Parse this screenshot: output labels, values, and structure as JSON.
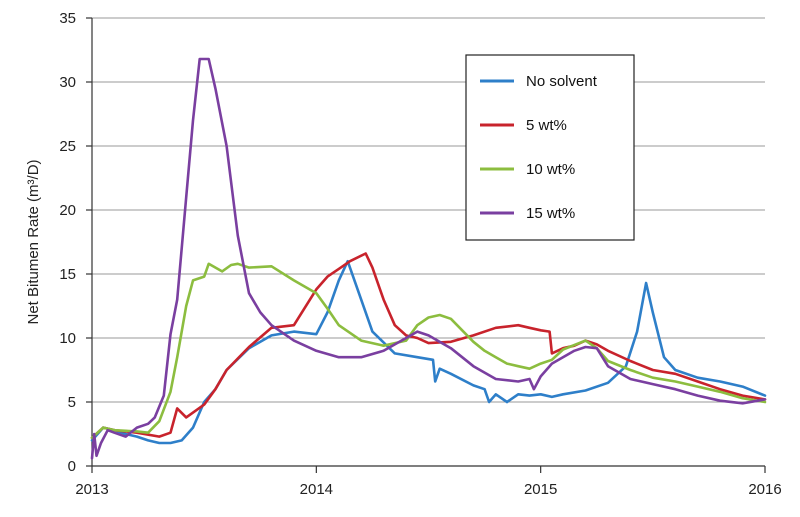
{
  "chart_data": {
    "type": "line",
    "title": "",
    "xlabel": "",
    "ylabel": "Net Bitumen Rate (m³/D)",
    "xlim": [
      2013,
      2016
    ],
    "ylim": [
      0,
      35
    ],
    "x_ticks": [
      "2013",
      "2014",
      "2015",
      "2016"
    ],
    "y_ticks": [
      "0",
      "5",
      "10",
      "15",
      "20",
      "25",
      "30",
      "35"
    ],
    "grid": "horizontal",
    "legend_position": "top-right",
    "series": [
      {
        "name": "No solvent",
        "color": "#2e7fc9",
        "points": [
          [
            2013.0,
            2.0
          ],
          [
            2013.02,
            2.4
          ],
          [
            2013.05,
            3.0
          ],
          [
            2013.1,
            2.8
          ],
          [
            2013.15,
            2.5
          ],
          [
            2013.2,
            2.3
          ],
          [
            2013.25,
            2.0
          ],
          [
            2013.3,
            1.8
          ],
          [
            2013.35,
            1.8
          ],
          [
            2013.4,
            2.0
          ],
          [
            2013.45,
            3.0
          ],
          [
            2013.5,
            5.0
          ],
          [
            2013.55,
            6.0
          ],
          [
            2013.6,
            7.5
          ],
          [
            2013.7,
            9.2
          ],
          [
            2013.8,
            10.2
          ],
          [
            2013.9,
            10.5
          ],
          [
            2014.0,
            10.3
          ],
          [
            2014.05,
            12.0
          ],
          [
            2014.1,
            14.5
          ],
          [
            2014.14,
            16.0
          ],
          [
            2014.18,
            14.0
          ],
          [
            2014.25,
            10.5
          ],
          [
            2014.35,
            8.8
          ],
          [
            2014.45,
            8.5
          ],
          [
            2014.52,
            8.3
          ],
          [
            2014.53,
            6.6
          ],
          [
            2014.55,
            7.6
          ],
          [
            2014.6,
            7.2
          ],
          [
            2014.7,
            6.3
          ],
          [
            2014.75,
            6.0
          ],
          [
            2014.77,
            5.0
          ],
          [
            2014.8,
            5.6
          ],
          [
            2014.85,
            5.0
          ],
          [
            2014.9,
            5.6
          ],
          [
            2014.95,
            5.5
          ],
          [
            2015.0,
            5.6
          ],
          [
            2015.05,
            5.4
          ],
          [
            2015.1,
            5.6
          ],
          [
            2015.2,
            5.9
          ],
          [
            2015.3,
            6.5
          ],
          [
            2015.38,
            7.8
          ],
          [
            2015.43,
            10.5
          ],
          [
            2015.47,
            14.3
          ],
          [
            2015.5,
            12.0
          ],
          [
            2015.55,
            8.5
          ],
          [
            2015.6,
            7.5
          ],
          [
            2015.7,
            6.9
          ],
          [
            2015.8,
            6.6
          ],
          [
            2015.9,
            6.2
          ],
          [
            2016.0,
            5.5
          ]
        ]
      },
      {
        "name": "5 wt%",
        "color": "#c8232c",
        "points": [
          [
            2013.0,
            2.2
          ],
          [
            2013.05,
            3.0
          ],
          [
            2013.1,
            2.8
          ],
          [
            2013.2,
            2.6
          ],
          [
            2013.3,
            2.3
          ],
          [
            2013.35,
            2.6
          ],
          [
            2013.38,
            4.5
          ],
          [
            2013.42,
            3.8
          ],
          [
            2013.5,
            4.8
          ],
          [
            2013.55,
            6.0
          ],
          [
            2013.6,
            7.5
          ],
          [
            2013.7,
            9.3
          ],
          [
            2013.8,
            10.8
          ],
          [
            2013.9,
            11.0
          ],
          [
            2014.0,
            13.8
          ],
          [
            2014.05,
            14.8
          ],
          [
            2014.1,
            15.4
          ],
          [
            2014.15,
            16.0
          ],
          [
            2014.22,
            16.6
          ],
          [
            2014.25,
            15.5
          ],
          [
            2014.3,
            13.0
          ],
          [
            2014.35,
            11.0
          ],
          [
            2014.4,
            10.2
          ],
          [
            2014.45,
            10.0
          ],
          [
            2014.5,
            9.6
          ],
          [
            2014.6,
            9.7
          ],
          [
            2014.7,
            10.2
          ],
          [
            2014.8,
            10.8
          ],
          [
            2014.9,
            11.0
          ],
          [
            2014.95,
            10.8
          ],
          [
            2015.0,
            10.6
          ],
          [
            2015.04,
            10.5
          ],
          [
            2015.05,
            8.8
          ],
          [
            2015.1,
            9.2
          ],
          [
            2015.15,
            9.4
          ],
          [
            2015.2,
            9.8
          ],
          [
            2015.25,
            9.5
          ],
          [
            2015.3,
            9.0
          ],
          [
            2015.4,
            8.2
          ],
          [
            2015.5,
            7.5
          ],
          [
            2015.6,
            7.2
          ],
          [
            2015.7,
            6.6
          ],
          [
            2015.8,
            6.0
          ],
          [
            2015.9,
            5.5
          ],
          [
            2016.0,
            5.2
          ]
        ]
      },
      {
        "name": "10 wt%",
        "color": "#8cbd3f",
        "points": [
          [
            2013.0,
            2.2
          ],
          [
            2013.05,
            3.0
          ],
          [
            2013.1,
            2.8
          ],
          [
            2013.2,
            2.7
          ],
          [
            2013.25,
            2.6
          ],
          [
            2013.3,
            3.5
          ],
          [
            2013.35,
            5.8
          ],
          [
            2013.38,
            8.5
          ],
          [
            2013.42,
            12.5
          ],
          [
            2013.45,
            14.5
          ],
          [
            2013.5,
            14.8
          ],
          [
            2013.52,
            15.8
          ],
          [
            2013.58,
            15.2
          ],
          [
            2013.62,
            15.7
          ],
          [
            2013.65,
            15.8
          ],
          [
            2013.7,
            15.5
          ],
          [
            2013.8,
            15.6
          ],
          [
            2013.9,
            14.5
          ],
          [
            2014.0,
            13.5
          ],
          [
            2014.05,
            12.3
          ],
          [
            2014.1,
            11.0
          ],
          [
            2014.2,
            9.8
          ],
          [
            2014.3,
            9.4
          ],
          [
            2014.4,
            9.8
          ],
          [
            2014.45,
            11.0
          ],
          [
            2014.5,
            11.6
          ],
          [
            2014.55,
            11.8
          ],
          [
            2014.6,
            11.5
          ],
          [
            2014.7,
            9.7
          ],
          [
            2014.75,
            9.0
          ],
          [
            2014.8,
            8.5
          ],
          [
            2014.85,
            8.0
          ],
          [
            2014.9,
            7.8
          ],
          [
            2014.95,
            7.6
          ],
          [
            2015.0,
            8.0
          ],
          [
            2015.05,
            8.3
          ],
          [
            2015.1,
            9.1
          ],
          [
            2015.2,
            9.8
          ],
          [
            2015.25,
            9.2
          ],
          [
            2015.3,
            8.2
          ],
          [
            2015.4,
            7.5
          ],
          [
            2015.5,
            6.9
          ],
          [
            2015.6,
            6.6
          ],
          [
            2015.7,
            6.2
          ],
          [
            2015.8,
            5.8
          ],
          [
            2015.9,
            5.3
          ],
          [
            2016.0,
            5.0
          ]
        ]
      },
      {
        "name": "15 wt%",
        "color": "#7a3fa0",
        "points": [
          [
            2013.0,
            0.6
          ],
          [
            2013.01,
            2.5
          ],
          [
            2013.02,
            0.8
          ],
          [
            2013.04,
            1.8
          ],
          [
            2013.07,
            2.8
          ],
          [
            2013.1,
            2.6
          ],
          [
            2013.15,
            2.3
          ],
          [
            2013.2,
            3.0
          ],
          [
            2013.25,
            3.3
          ],
          [
            2013.28,
            3.8
          ],
          [
            2013.32,
            5.5
          ],
          [
            2013.35,
            10.3
          ],
          [
            2013.38,
            13.0
          ],
          [
            2013.42,
            21.0
          ],
          [
            2013.45,
            27.0
          ],
          [
            2013.48,
            31.8
          ],
          [
            2013.52,
            31.8
          ],
          [
            2013.55,
            29.5
          ],
          [
            2013.6,
            25.0
          ],
          [
            2013.65,
            18.0
          ],
          [
            2013.7,
            13.5
          ],
          [
            2013.75,
            12.0
          ],
          [
            2013.8,
            11.0
          ],
          [
            2013.9,
            9.8
          ],
          [
            2014.0,
            9.0
          ],
          [
            2014.1,
            8.5
          ],
          [
            2014.2,
            8.5
          ],
          [
            2014.3,
            9.0
          ],
          [
            2014.4,
            10.0
          ],
          [
            2014.45,
            10.5
          ],
          [
            2014.5,
            10.2
          ],
          [
            2014.6,
            9.2
          ],
          [
            2014.7,
            7.8
          ],
          [
            2014.8,
            6.8
          ],
          [
            2014.9,
            6.6
          ],
          [
            2014.95,
            6.8
          ],
          [
            2014.97,
            6.0
          ],
          [
            2015.0,
            7.0
          ],
          [
            2015.05,
            8.0
          ],
          [
            2015.15,
            9.0
          ],
          [
            2015.2,
            9.3
          ],
          [
            2015.25,
            9.2
          ],
          [
            2015.3,
            7.8
          ],
          [
            2015.4,
            6.8
          ],
          [
            2015.5,
            6.4
          ],
          [
            2015.6,
            6.0
          ],
          [
            2015.7,
            5.5
          ],
          [
            2015.8,
            5.1
          ],
          [
            2015.9,
            4.9
          ],
          [
            2016.0,
            5.2
          ]
        ]
      }
    ]
  }
}
